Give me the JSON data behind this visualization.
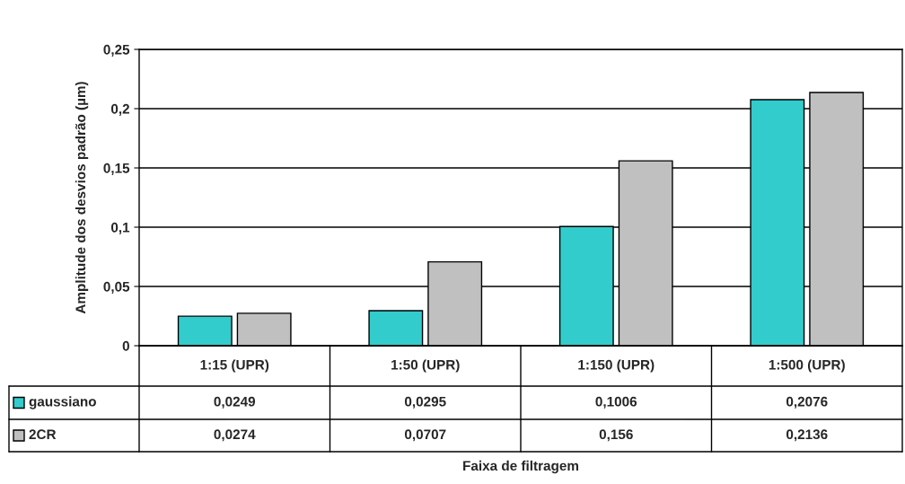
{
  "chart_data": {
    "type": "bar",
    "categories": [
      "1:15 (UPR)",
      "1:50 (UPR)",
      "1:150 (UPR)",
      "1:500 (UPR)"
    ],
    "series": [
      {
        "name": "gaussiano",
        "color": "#33cccc",
        "values": [
          0.0249,
          0.0295,
          0.1006,
          0.2076
        ],
        "value_labels": [
          "0,0249",
          "0,0295",
          "0,1006",
          "0,2076"
        ]
      },
      {
        "name": "2CR",
        "color": "#c0c0c0",
        "values": [
          0.0274,
          0.0707,
          0.156,
          0.2136
        ],
        "value_labels": [
          "0,0274",
          "0,0707",
          "0,156",
          "0,2136"
        ]
      }
    ],
    "annotations": [
      "Faixa de filtragem"
    ],
    "ylabel": "Amplitude dos desvios padrão (µm)",
    "ylim": [
      0,
      0.25
    ],
    "yticks": [
      0,
      {
        "value": 0.05,
        "label": "0,05"
      },
      {
        "value": 0.1,
        "label": "0,1"
      },
      {
        "value": 0.15,
        "label": "0,15"
      },
      {
        "value": 0.2,
        "label": "0,2"
      },
      {
        "value": 0.25,
        "label": "0,25"
      }
    ],
    "grid": "y",
    "legend": "bottom"
  }
}
